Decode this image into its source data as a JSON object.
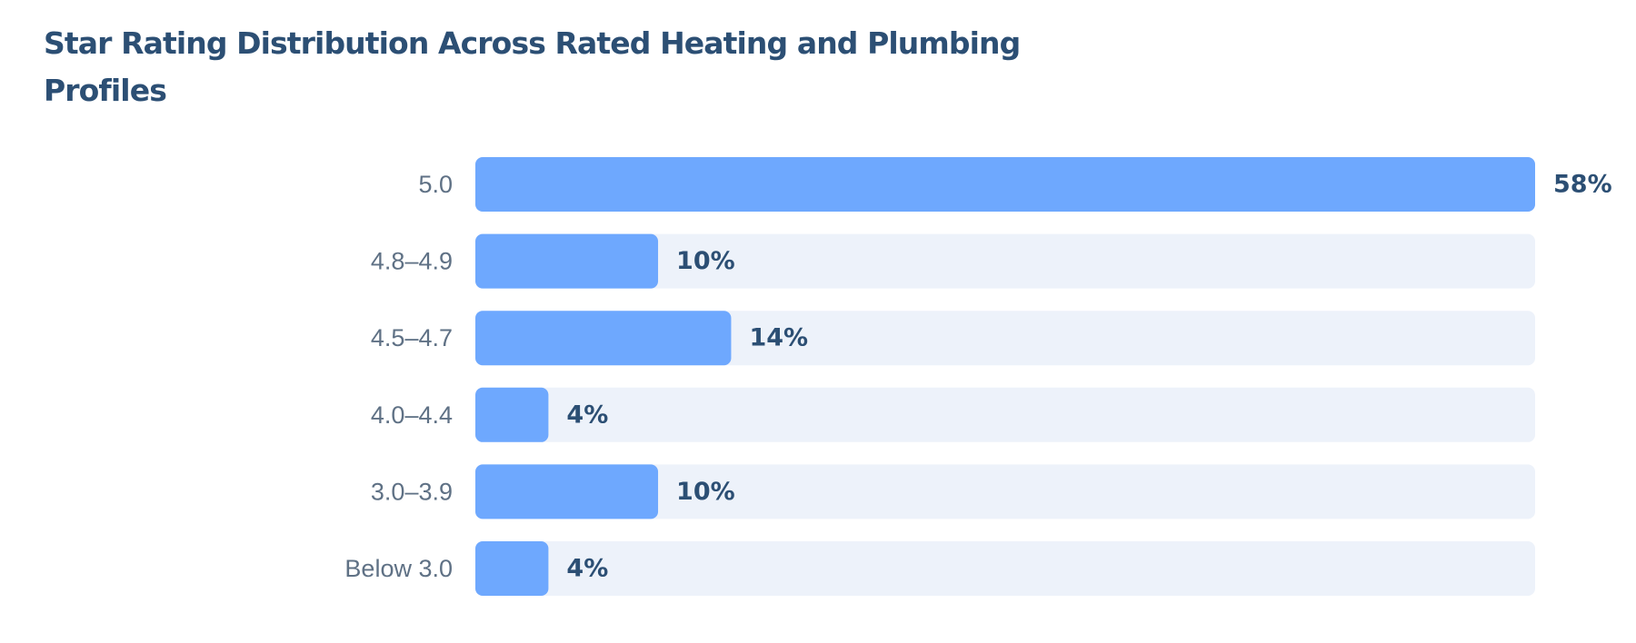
{
  "chart_data": {
    "type": "bar",
    "orientation": "horizontal",
    "title": "Star Rating Distribution Across Rated Heating and Plumbing Profiles",
    "categories": [
      "5.0",
      "4.8–4.9",
      "4.5–4.7",
      "4.0–4.4",
      "3.0–3.9",
      "Below 3.0"
    ],
    "values": [
      58,
      10,
      14,
      4,
      10,
      4
    ],
    "value_labels": [
      "58%",
      "10%",
      "14%",
      "4%",
      "10%",
      "4%"
    ],
    "xlim": [
      0,
      58
    ],
    "grid": false,
    "legend": "none",
    "colors": {
      "bar": "#6ea8fe",
      "track": "#edf2fa",
      "title": "#2c4f74",
      "category_label": "#5f7185",
      "value_label": "#2c4f74"
    }
  }
}
